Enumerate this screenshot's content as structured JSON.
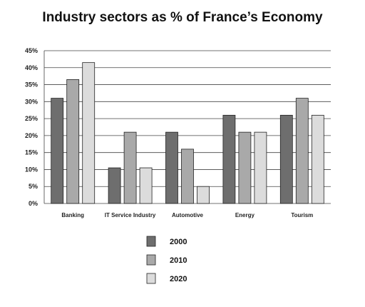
{
  "chart_data": {
    "type": "bar",
    "title": "Industry sectors as % of France’s Economy",
    "categories": [
      "Banking",
      "IT Service Industry",
      "Automotive",
      "Energy",
      "Tourism"
    ],
    "series": [
      {
        "name": "2000",
        "values": [
          31,
          10.5,
          21,
          26,
          26
        ],
        "color": "#6e6e6e"
      },
      {
        "name": "2010",
        "values": [
          36.5,
          21,
          16,
          21,
          31
        ],
        "color": "#a9a9a9"
      },
      {
        "name": "2020",
        "values": [
          41.5,
          10.5,
          5,
          21,
          26
        ],
        "color": "#dcdcdc"
      }
    ],
    "ylim": [
      0,
      45
    ],
    "yticks": [
      "0%",
      "5%",
      "10%",
      "15%",
      "20%",
      "25%",
      "30%",
      "35%",
      "40%",
      "45%"
    ],
    "xlabel": "",
    "ylabel": "",
    "grid": "horizontal",
    "legend_position": "bottom-center"
  }
}
